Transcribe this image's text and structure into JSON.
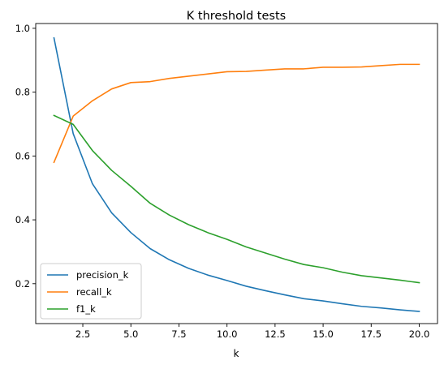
{
  "chart_data": {
    "type": "line",
    "title": "K threshold tests",
    "xlabel": "k",
    "ylabel": "",
    "xlim": [
      0.05,
      20.95
    ],
    "ylim": [
      0.075,
      1.015
    ],
    "xticks": [
      2.5,
      5.0,
      7.5,
      10.0,
      12.5,
      15.0,
      17.5,
      20.0
    ],
    "xtick_labels": [
      "2.5",
      "5.0",
      "7.5",
      "10.0",
      "12.5",
      "15.0",
      "17.5",
      "20.0"
    ],
    "yticks": [
      0.2,
      0.4,
      0.6,
      0.8,
      1.0
    ],
    "ytick_labels": [
      "0.2",
      "0.4",
      "0.6",
      "0.8",
      "1.0"
    ],
    "grid": false,
    "legend_position": "lower-left",
    "x": [
      1,
      2,
      3,
      4,
      5,
      6,
      7,
      8,
      9,
      10,
      11,
      12,
      13,
      14,
      15,
      16,
      17,
      18,
      19,
      20
    ],
    "series": [
      {
        "name": "precision_k",
        "color": "#1f77b4",
        "values": [
          0.97,
          0.67,
          0.513,
          0.422,
          0.36,
          0.31,
          0.275,
          0.248,
          0.227,
          0.21,
          0.192,
          0.178,
          0.165,
          0.153,
          0.146,
          0.137,
          0.129,
          0.124,
          0.118,
          0.113
        ]
      },
      {
        "name": "recall_k",
        "color": "#ff7f0e",
        "values": [
          0.58,
          0.725,
          0.773,
          0.81,
          0.83,
          0.833,
          0.843,
          0.85,
          0.857,
          0.864,
          0.865,
          0.869,
          0.873,
          0.873,
          0.878,
          0.878,
          0.879,
          0.883,
          0.887,
          0.887
        ]
      },
      {
        "name": "f1_k",
        "color": "#2ca02c",
        "values": [
          0.727,
          0.699,
          0.617,
          0.555,
          0.505,
          0.452,
          0.415,
          0.385,
          0.36,
          0.339,
          0.315,
          0.296,
          0.277,
          0.26,
          0.25,
          0.236,
          0.225,
          0.218,
          0.211,
          0.203
        ]
      }
    ]
  }
}
